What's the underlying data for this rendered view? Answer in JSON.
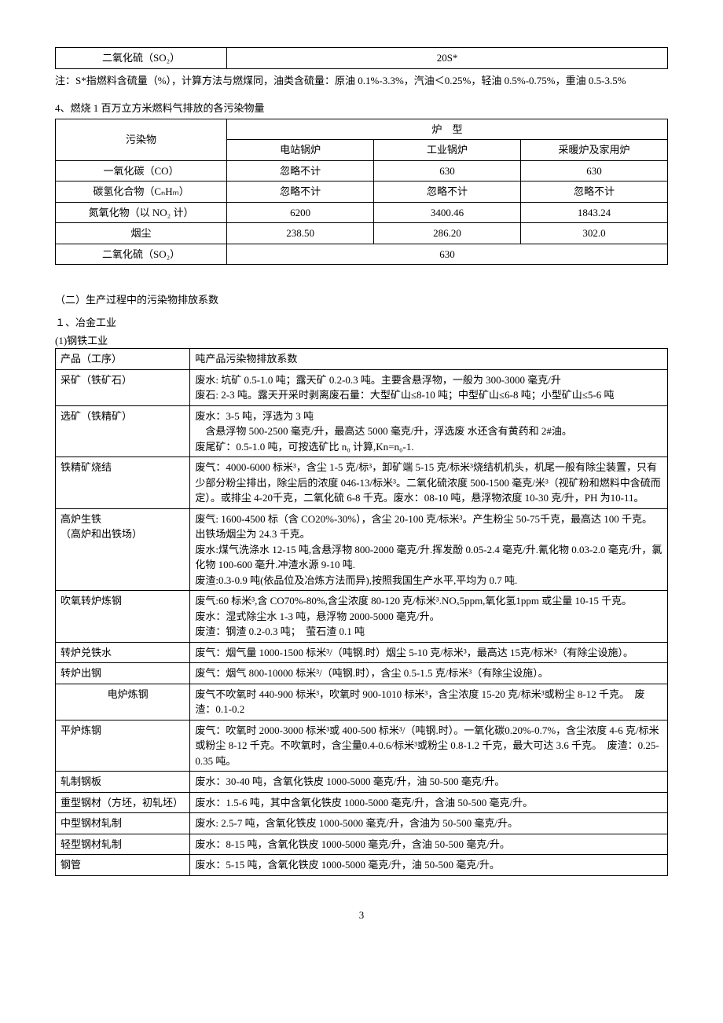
{
  "table1": {
    "row_label": "二氧化硫（SO₂）",
    "row_value": "20S*"
  },
  "note1": "注：S*指燃料含硫量（%），计算方法与燃煤同，油类含硫量：原油 0.1%-3.3%，汽油＜0.25%，轻油 0.5%-0.75%，重油 0.5-3.5%",
  "section4_title": "4、燃烧 1 百万立方米燃料气排放的各污染物量",
  "table2": {
    "header1": "污染物",
    "header2": "炉　型",
    "sub_headers": [
      "电站锅炉",
      "工业锅炉",
      "采暖炉及家用炉"
    ],
    "rows": [
      {
        "label": "一氧化碳（CO）",
        "cells": [
          "忽略不计",
          "630",
          "630"
        ]
      },
      {
        "label": "碳氢化合物（CₙHₘ）",
        "cells": [
          "忽略不计",
          "忽略不计",
          "忽略不计"
        ]
      },
      {
        "label": "氮氧化物（以 NO₂ 计）",
        "cells": [
          "6200",
          "3400.46",
          "1843.24"
        ]
      },
      {
        "label": "烟尘",
        "cells": [
          "238.50",
          "286.20",
          "302.0"
        ]
      },
      {
        "label": "二氧化硫（SO₂）",
        "merged_value": "630"
      }
    ]
  },
  "section_b": "（二）生产过程中的污染物排放系数",
  "section_b1": "１、冶金工业",
  "section_b1_1": "(1)钢铁工业",
  "table3": {
    "header1": "产品（工序）",
    "header2": "吨产品污染物排放系数",
    "rows": [
      {
        "label": "采矿（铁矿石）",
        "text": "废水: 坑矿 0.5-1.0 吨；露天矿 0.2-0.3 吨。主要含悬浮物，一般为 300-3000 毫克/升\n废石: 2-3 吨。露天开采时剥离废石量：大型矿山≤8-10 吨；中型矿山≤6-8 吨；小型矿山≤5-6 吨"
      },
      {
        "label": "选矿（铁精矿）",
        "text": "废水：3-5 吨，浮选为 3 吨\n　含悬浮物 500-2500 毫克/升，最高达 5000 毫克/升，浮选废 水还含有黄药和 2#油。\n废尾矿：0.5-1.0 吨，可按选矿比 n₀ 计算,Kn=n₀-1."
      },
      {
        "label": "铁精矿烧结",
        "text": "废气：4000-6000 标米³，含尘 1-5 克/标³，卸矿端 5-15 克/标米³烧结机机头，机尾一般有除尘装置，只有少部分粉尘排出，除尘后的浓度 046-13/标米³。二氧化硫浓度 500-1500 毫克/米³（视矿粉和燃料中含硫而定）。或排尘 4-20千克，二氧化硫 6-8 千克。废水：08-10 吨，悬浮物浓度 10-30 克/升，PH 为10-11。"
      },
      {
        "label": "高炉生铁\n（高炉和出铁场）",
        "text": "废气: 1600-4500 标（含 CO20%-30%），含尘 20-100 克/标米³。产生粉尘 50-75千克，最高达 100 千克。出铁场烟尘为 24.3 千克。\n废水:煤气洗涤水 12-15 吨,含悬浮物 800-2000 毫克/升.挥发酚 0.05-2.4 毫克/升.氰化物 0.03-2.0 毫克/升，氯化物 100-600 毫升.冲渣水源 9-10 吨.\n废渣:0.3-0.9 吨(依品位及冶炼方法而异),按照我国生产水平,平均为 0.7 吨."
      },
      {
        "label": "吹氧转炉炼钢",
        "text": "废气:60 标米³,含 CO70%-80%,含尘浓度 80-120 克/标米³.NOₓ5ppm,氧化氢1ppm 或尘量 10-15 千克。\n废水：湿式除尘水 1-3 吨，悬浮物 2000-5000 毫克/升。\n废渣：钢渣 0.2-0.3 吨；　萤石渣 0.1 吨"
      },
      {
        "label": "转炉兑铁水",
        "text": "废气：烟气量 1000-1500 标米³/（吨钢.时）烟尘 5-10 克/标米³，最高达 15克/标米³（有除尘设施）。"
      },
      {
        "label": "转炉出钢",
        "text": "废气：烟气 800-10000 标米³/（吨钢.时），含尘 0.5-1.5 克/标米³（有除尘设施）。"
      },
      {
        "label": "　电炉炼钢",
        "text": "废气不吹氧时 440-900 标米³，吹氧时 900-1010 标米³，含尘浓度 15-20 克/标米³或粉尘 8-12 千克。　废渣：0.1-0.2"
      },
      {
        "label": "平炉炼钢",
        "text": "废气：吹氧时 2000-3000 标米³或 400-500 标米³/（吨钢.时）。一氧化碳0.20%-0.7%，含尘浓度 4-6 克/标米或粉尘 8-12 千克。不吹氧时，含尘量0.4-0.6/标米³或粉尘 0.8-1.2 千克，最大可达 3.6 千克。　废渣：0.25-0.35 吨。"
      },
      {
        "label": "轧制钢板",
        "text": "废水：30-40 吨，含氧化铁皮 1000-5000 毫克/升，油 50-500 毫克/升。"
      },
      {
        "label": "重型钢材（方坯，初轧坯）",
        "text": "废水：1.5-6 吨，其中含氧化铁皮 1000-5000 毫克/升，含油 50-500 毫克/升。"
      },
      {
        "label": "中型钢材轧制",
        "text": "废水: 2.5-7 吨，含氧化铁皮 1000-5000 毫克/升，含油为 50-500 毫克/升。"
      },
      {
        "label": "轻型钢材轧制",
        "text": "废水：8-15 吨，含氧化铁皮 1000-5000 毫克/升，含油 50-500 毫克/升。"
      },
      {
        "label": "钢管",
        "text": "废水：5-15 吨，含氧化铁皮 1000-5000 毫克/升，油 50-500 毫克/升。"
      }
    ]
  },
  "page_number": "3"
}
